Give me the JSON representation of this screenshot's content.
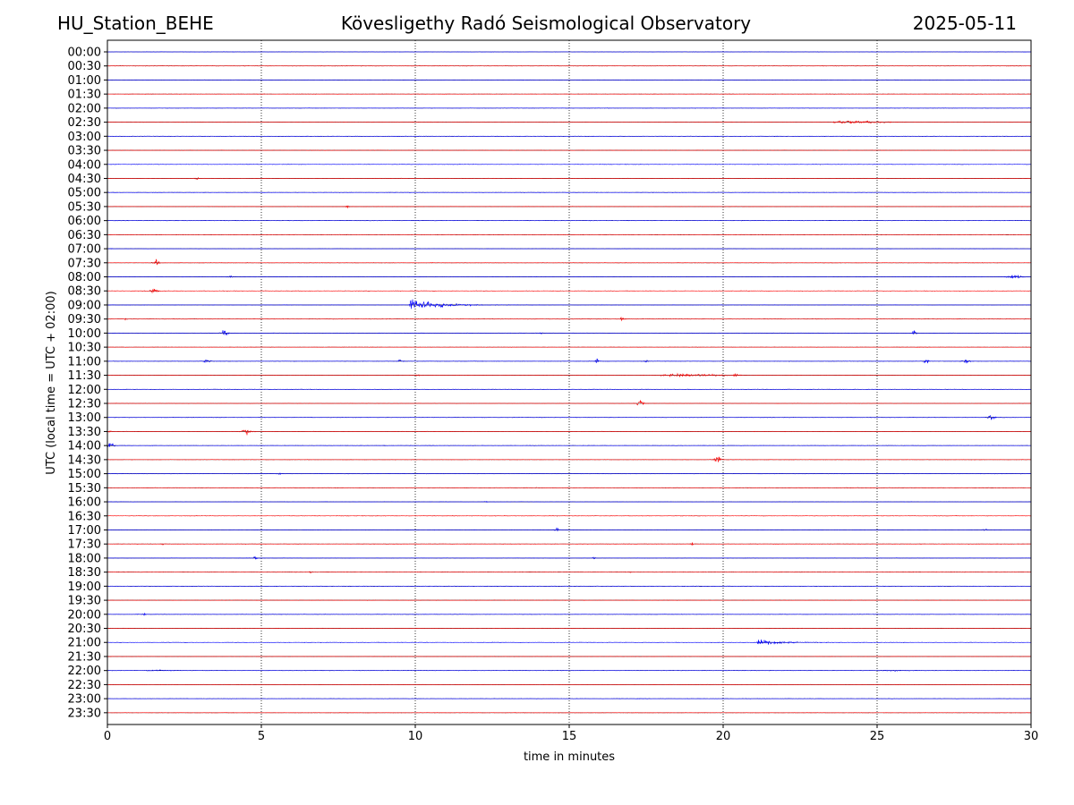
{
  "header": {
    "station": "HU_Station_BEHE",
    "title": "Kövesligethy Radó Seismological Observatory",
    "date": "2025-05-11"
  },
  "chart_data": {
    "type": "line",
    "title": "Kövesligethy Radó Seismological Observatory",
    "xlabel": "time in minutes",
    "ylabel": "UTC (local time = UTC + 02:00)",
    "xlim": [
      0,
      30
    ],
    "xticks": [
      0,
      5,
      10,
      15,
      20,
      25,
      30
    ],
    "grid": "vertical dotted lines at 5-minute intervals",
    "trace_colors": [
      "#0000ff",
      "#ff0000"
    ],
    "line_color": "#000000",
    "rows": [
      "00:00",
      "00:30",
      "01:00",
      "01:30",
      "02:00",
      "02:30",
      "03:00",
      "03:30",
      "04:00",
      "04:30",
      "05:00",
      "05:30",
      "06:00",
      "06:30",
      "07:00",
      "07:30",
      "08:00",
      "08:30",
      "09:00",
      "09:30",
      "10:00",
      "10:30",
      "11:00",
      "11:30",
      "12:00",
      "12:30",
      "13:00",
      "13:30",
      "14:00",
      "14:30",
      "15:00",
      "15:30",
      "16:00",
      "16:30",
      "17:00",
      "17:30",
      "18:00",
      "18:30",
      "19:00",
      "19:30",
      "20:00",
      "20:30",
      "21:00",
      "21:30",
      "22:00",
      "22:30",
      "23:00",
      "23:30"
    ],
    "events": [
      {
        "row": "02:30",
        "t": 23.5,
        "amp": 0.6,
        "dur": 2.5,
        "kind": "emergent"
      },
      {
        "row": "04:30",
        "t": 2.9,
        "amp": 0.3,
        "dur": 0.15,
        "kind": "spike"
      },
      {
        "row": "05:30",
        "t": 7.8,
        "amp": 0.25,
        "dur": 0.15,
        "kind": "spike"
      },
      {
        "row": "07:30",
        "t": 1.6,
        "amp": 0.45,
        "dur": 0.2,
        "kind": "spike"
      },
      {
        "row": "08:00",
        "t": 4.0,
        "amp": 0.2,
        "dur": 0.15,
        "kind": "spike"
      },
      {
        "row": "08:00",
        "t": 29.5,
        "amp": 0.5,
        "dur": 0.4,
        "kind": "spike"
      },
      {
        "row": "08:30",
        "t": 1.5,
        "amp": 0.45,
        "dur": 0.3,
        "kind": "spike"
      },
      {
        "row": "09:00",
        "t": 9.8,
        "amp": 1.6,
        "dur": 4.5,
        "kind": "quake"
      },
      {
        "row": "09:30",
        "t": 0.6,
        "amp": 0.2,
        "dur": 0.1,
        "kind": "spike"
      },
      {
        "row": "09:30",
        "t": 16.7,
        "amp": 0.4,
        "dur": 0.2,
        "kind": "spike"
      },
      {
        "row": "10:00",
        "t": 3.8,
        "amp": 0.7,
        "dur": 0.2,
        "kind": "spike"
      },
      {
        "row": "10:00",
        "t": 14.1,
        "amp": 0.2,
        "dur": 0.1,
        "kind": "spike"
      },
      {
        "row": "10:00",
        "t": 26.2,
        "amp": 0.45,
        "dur": 0.15,
        "kind": "spike"
      },
      {
        "row": "11:00",
        "t": 3.2,
        "amp": 0.35,
        "dur": 0.3,
        "kind": "spike"
      },
      {
        "row": "11:00",
        "t": 9.5,
        "amp": 0.3,
        "dur": 0.2,
        "kind": "spike"
      },
      {
        "row": "11:00",
        "t": 15.9,
        "amp": 0.5,
        "dur": 0.15,
        "kind": "spike"
      },
      {
        "row": "11:00",
        "t": 17.5,
        "amp": 0.25,
        "dur": 0.15,
        "kind": "spike"
      },
      {
        "row": "11:00",
        "t": 26.6,
        "amp": 0.4,
        "dur": 0.2,
        "kind": "spike"
      },
      {
        "row": "11:00",
        "t": 27.9,
        "amp": 0.4,
        "dur": 0.25,
        "kind": "spike"
      },
      {
        "row": "11:30",
        "t": 17.9,
        "amp": 0.55,
        "dur": 3.2,
        "kind": "emergent"
      },
      {
        "row": "11:30",
        "t": 20.4,
        "amp": 0.4,
        "dur": 0.2,
        "kind": "spike"
      },
      {
        "row": "11:30",
        "t": 10.1,
        "amp": 0.15,
        "dur": 0.3,
        "kind": "spike"
      },
      {
        "row": "12:30",
        "t": 17.3,
        "amp": 0.7,
        "dur": 0.2,
        "kind": "spike"
      },
      {
        "row": "13:00",
        "t": 28.7,
        "amp": 0.55,
        "dur": 0.2,
        "kind": "spike"
      },
      {
        "row": "13:30",
        "t": 4.5,
        "amp": 0.5,
        "dur": 0.3,
        "kind": "spike"
      },
      {
        "row": "13:30",
        "t": 0.1,
        "amp": 0.25,
        "dur": 0.1,
        "kind": "spike"
      },
      {
        "row": "14:00",
        "t": 0.1,
        "amp": 0.75,
        "dur": 0.2,
        "kind": "spike"
      },
      {
        "row": "14:00",
        "t": 9.0,
        "amp": 0.2,
        "dur": 0.1,
        "kind": "spike"
      },
      {
        "row": "14:30",
        "t": 19.8,
        "amp": 0.7,
        "dur": 0.25,
        "kind": "spike"
      },
      {
        "row": "15:00",
        "t": 5.6,
        "amp": 0.15,
        "dur": 0.2,
        "kind": "spike"
      },
      {
        "row": "15:30",
        "t": 14.0,
        "amp": 0.2,
        "dur": 0.1,
        "kind": "spike"
      },
      {
        "row": "16:00",
        "t": 12.3,
        "amp": 0.2,
        "dur": 0.1,
        "kind": "spike"
      },
      {
        "row": "17:00",
        "t": 14.6,
        "amp": 0.55,
        "dur": 0.15,
        "kind": "spike"
      },
      {
        "row": "17:00",
        "t": 28.5,
        "amp": 0.3,
        "dur": 0.15,
        "kind": "spike"
      },
      {
        "row": "17:30",
        "t": 19.0,
        "amp": 0.35,
        "dur": 0.15,
        "kind": "spike"
      },
      {
        "row": "17:30",
        "t": 1.8,
        "amp": 0.15,
        "dur": 0.1,
        "kind": "spike"
      },
      {
        "row": "18:00",
        "t": 4.8,
        "amp": 0.3,
        "dur": 0.15,
        "kind": "spike"
      },
      {
        "row": "18:00",
        "t": 15.8,
        "amp": 0.2,
        "dur": 0.1,
        "kind": "spike"
      },
      {
        "row": "18:30",
        "t": 6.6,
        "amp": 0.2,
        "dur": 0.1,
        "kind": "spike"
      },
      {
        "row": "18:30",
        "t": 17.0,
        "amp": 0.15,
        "dur": 0.1,
        "kind": "spike"
      },
      {
        "row": "20:00",
        "t": 1.2,
        "amp": 0.25,
        "dur": 0.1,
        "kind": "spike"
      },
      {
        "row": "21:00",
        "t": 21.1,
        "amp": 0.8,
        "dur": 3.8,
        "kind": "quake"
      },
      {
        "row": "22:00",
        "t": 1.2,
        "amp": 0.2,
        "dur": 1.5,
        "kind": "emergent"
      },
      {
        "row": "22:00",
        "t": 25.0,
        "amp": 0.25,
        "dur": 1.7,
        "kind": "emergent"
      }
    ]
  }
}
